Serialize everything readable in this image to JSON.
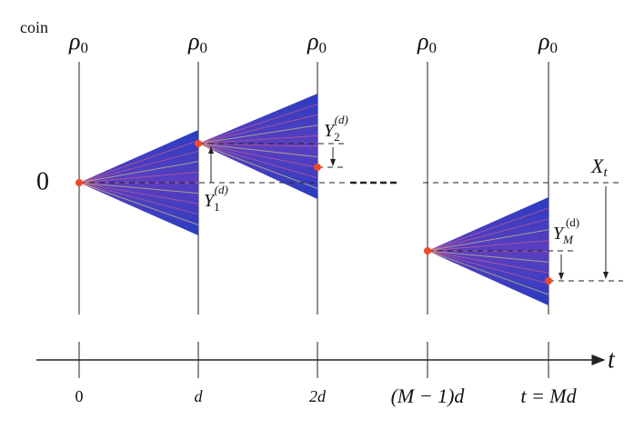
{
  "labels": {
    "coin": "coin",
    "rho": [
      {
        "base": "ρ",
        "sub": "0"
      },
      {
        "base": "ρ",
        "sub": "0"
      },
      {
        "base": "ρ",
        "sub": "0"
      },
      {
        "base": "ρ",
        "sub": "0"
      },
      {
        "base": "ρ",
        "sub": "0"
      }
    ],
    "zero": "0",
    "y1": {
      "base": "Y",
      "sub": "1",
      "sup": "(d)"
    },
    "y2": {
      "base": "Y",
      "sub": "2",
      "sup": "(d)"
    },
    "ym": {
      "base": "Y",
      "sub": "M",
      "sup": "(d)"
    },
    "xt": {
      "base": "X",
      "sub": "t"
    },
    "axis_label": "t",
    "ticks": [
      "0",
      "d",
      "2d",
      "(M − 1)d",
      "t = Md"
    ]
  }
}
